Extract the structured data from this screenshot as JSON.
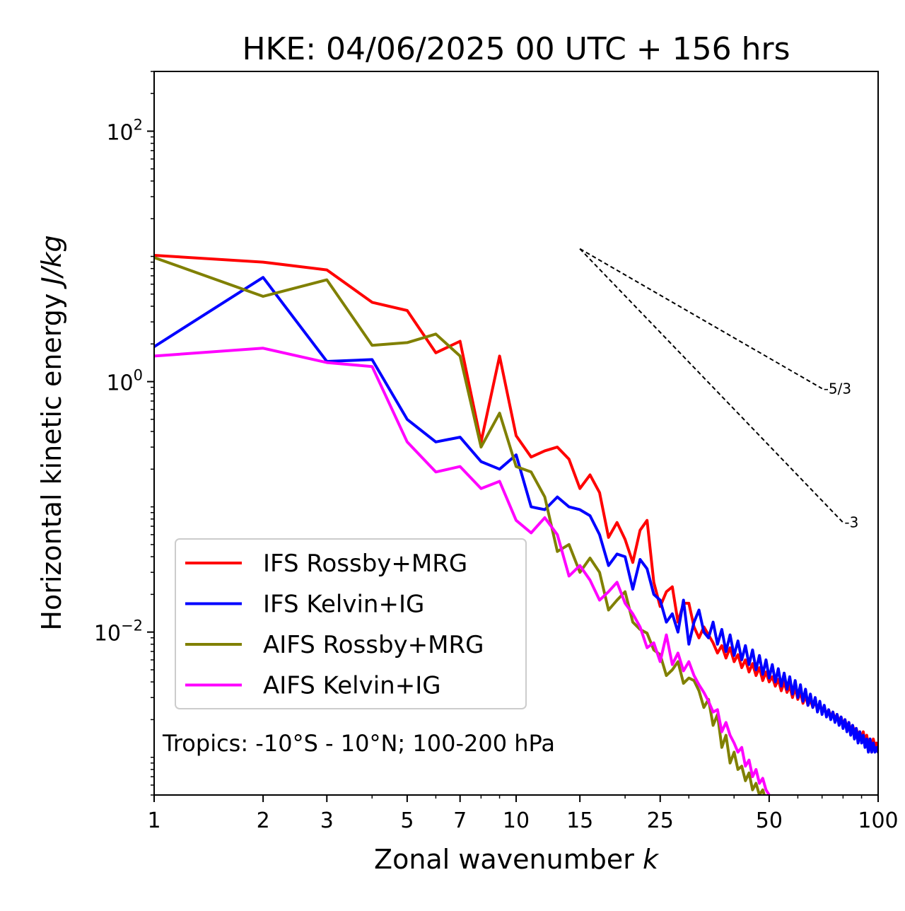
{
  "chart_data": {
    "type": "line",
    "title": "HKE: 04/06/2025 00 UTC + 156 hrs",
    "xlabel": "Zonal wavenumber",
    "xlabel_var": "k",
    "ylabel": "Horizontal kinetic energy",
    "ylabel_unit": "J/kg",
    "xscale": "log",
    "yscale": "log",
    "xlim": [
      1,
      100
    ],
    "ylim": [
      0.0005,
      300
    ],
    "xticks": [
      1,
      2,
      3,
      5,
      7,
      10,
      15,
      25,
      50,
      100
    ],
    "xtick_labels": [
      "1",
      "2",
      "3",
      "5",
      "7",
      "10",
      "15",
      "25",
      "50",
      "100"
    ],
    "yticks": [
      0.01,
      1,
      100
    ],
    "ytick_labels": [
      {
        "base": "10",
        "exp": "−2"
      },
      {
        "base": "10",
        "exp": "0"
      },
      {
        "base": "10",
        "exp": "2"
      }
    ],
    "grid": false,
    "legend_position": "lower-left",
    "annotation": "Tropics: -10°S - 10°N; 100-200 hPa",
    "reference_slopes": [
      {
        "label": "-5/3",
        "slope": -1.6667,
        "from": [
          15,
          11.5
        ],
        "to": [
          70,
          0.88
        ]
      },
      {
        "label": "-3",
        "slope": -3,
        "from": [
          15,
          11.5
        ],
        "to": [
          80,
          0.075
        ]
      }
    ],
    "series": [
      {
        "name": "IFS Rossby+MRG",
        "color": "#ff0000",
        "x": [
          1,
          2,
          3,
          4,
          5,
          6,
          7,
          8,
          9,
          10,
          11,
          12,
          13,
          14,
          15,
          16,
          17,
          18,
          19,
          20,
          21,
          22,
          23,
          24,
          25,
          26,
          27,
          28,
          29,
          30,
          31,
          32,
          33,
          34,
          35,
          36,
          37,
          38,
          39,
          40,
          41,
          42,
          43,
          44,
          45,
          46,
          47,
          48,
          49,
          50,
          51,
          52,
          53,
          54,
          55,
          56,
          57,
          58,
          59,
          60,
          61,
          62,
          63,
          64,
          65,
          66,
          67,
          68,
          69,
          70,
          71,
          72,
          73,
          74,
          75,
          76,
          77,
          78,
          79,
          80,
          81,
          82,
          83,
          84,
          85,
          86,
          87,
          88,
          89,
          90,
          91,
          92,
          93,
          94,
          95,
          96,
          97,
          98,
          99,
          100
        ],
        "y": [
          10.2,
          9.0,
          7.8,
          4.3,
          3.7,
          1.7,
          2.1,
          0.33,
          1.6,
          0.37,
          0.25,
          0.28,
          0.3,
          0.24,
          0.14,
          0.18,
          0.13,
          0.057,
          0.075,
          0.055,
          0.036,
          0.065,
          0.078,
          0.025,
          0.016,
          0.021,
          0.023,
          0.012,
          0.017,
          0.017,
          0.011,
          0.009,
          0.011,
          0.0095,
          0.0082,
          0.0068,
          0.0078,
          0.0062,
          0.0075,
          0.0058,
          0.0066,
          0.0052,
          0.006,
          0.0048,
          0.0056,
          0.0045,
          0.0052,
          0.0041,
          0.0048,
          0.004,
          0.0044,
          0.0037,
          0.0042,
          0.0034,
          0.004,
          0.0033,
          0.0037,
          0.003,
          0.0036,
          0.0029,
          0.0033,
          0.0027,
          0.0031,
          0.0026,
          0.0029,
          0.0025,
          0.0028,
          0.0024,
          0.0027,
          0.0023,
          0.0025,
          0.0022,
          0.0024,
          0.0021,
          0.0023,
          0.002,
          0.0022,
          0.0019,
          0.0021,
          0.0018,
          0.002,
          0.0017,
          0.0019,
          0.0016,
          0.0018,
          0.0016,
          0.0017,
          0.0015,
          0.0016,
          0.0014,
          0.0016,
          0.0013,
          0.0015,
          0.0012,
          0.0014,
          0.0011,
          0.0014,
          0.0012,
          0.0013,
          0.0011
        ]
      },
      {
        "name": "IFS Kelvin+IG",
        "color": "#0000ff",
        "x": [
          1,
          2,
          3,
          4,
          5,
          6,
          7,
          8,
          9,
          10,
          11,
          12,
          13,
          14,
          15,
          16,
          17,
          18,
          19,
          20,
          21,
          22,
          23,
          24,
          25,
          26,
          27,
          28,
          29,
          30,
          31,
          32,
          33,
          34,
          35,
          36,
          37,
          38,
          39,
          40,
          41,
          42,
          43,
          44,
          45,
          46,
          47,
          48,
          49,
          50,
          51,
          52,
          53,
          54,
          55,
          56,
          57,
          58,
          59,
          60,
          61,
          62,
          63,
          64,
          65,
          66,
          67,
          68,
          69,
          70,
          71,
          72,
          73,
          74,
          75,
          76,
          77,
          78,
          79,
          80,
          81,
          82,
          83,
          84,
          85,
          86,
          87,
          88,
          89,
          90,
          91,
          92,
          93,
          94,
          95,
          96,
          97,
          98,
          99,
          100
        ],
        "y": [
          1.9,
          6.8,
          1.45,
          1.5,
          0.5,
          0.33,
          0.36,
          0.23,
          0.2,
          0.26,
          0.1,
          0.095,
          0.12,
          0.1,
          0.095,
          0.085,
          0.06,
          0.034,
          0.042,
          0.04,
          0.022,
          0.038,
          0.032,
          0.02,
          0.018,
          0.012,
          0.014,
          0.01,
          0.018,
          0.008,
          0.012,
          0.015,
          0.01,
          0.009,
          0.012,
          0.008,
          0.0105,
          0.007,
          0.0095,
          0.0065,
          0.0085,
          0.006,
          0.0078,
          0.0055,
          0.0072,
          0.005,
          0.0065,
          0.0046,
          0.006,
          0.0043,
          0.0055,
          0.004,
          0.0051,
          0.0037,
          0.0047,
          0.0035,
          0.0044,
          0.0032,
          0.0041,
          0.003,
          0.0038,
          0.0028,
          0.0035,
          0.0026,
          0.0032,
          0.0025,
          0.003,
          0.0023,
          0.0028,
          0.0022,
          0.0026,
          0.0021,
          0.0024,
          0.002,
          0.0023,
          0.0019,
          0.0022,
          0.0018,
          0.0021,
          0.0017,
          0.002,
          0.0016,
          0.0019,
          0.0015,
          0.0018,
          0.0014,
          0.0017,
          0.0013,
          0.0016,
          0.0013,
          0.0015,
          0.0012,
          0.0014,
          0.0011,
          0.0014,
          0.0011,
          0.0013,
          0.0011,
          0.0012,
          0.0011
        ]
      },
      {
        "name": "AIFS Rossby+MRG",
        "color": "#808000",
        "x": [
          1,
          2,
          3,
          4,
          5,
          6,
          7,
          8,
          9,
          10,
          11,
          12,
          13,
          14,
          15,
          16,
          17,
          18,
          19,
          20,
          21,
          22,
          23,
          24,
          25,
          26,
          27,
          28,
          29,
          30,
          31,
          32,
          33,
          34,
          35,
          36,
          37,
          38,
          39,
          40,
          41,
          42,
          43,
          44,
          45,
          46,
          47,
          48,
          49,
          50
        ],
        "y": [
          9.8,
          4.8,
          6.5,
          1.95,
          2.05,
          2.4,
          1.6,
          0.3,
          0.56,
          0.21,
          0.19,
          0.12,
          0.044,
          0.05,
          0.03,
          0.039,
          0.03,
          0.015,
          0.018,
          0.021,
          0.012,
          0.0105,
          0.0098,
          0.0072,
          0.0066,
          0.0045,
          0.005,
          0.0058,
          0.0039,
          0.0043,
          0.0041,
          0.0034,
          0.0025,
          0.0029,
          0.0018,
          0.0022,
          0.0012,
          0.0015,
          0.0009,
          0.0011,
          0.0008,
          0.00085,
          0.00065,
          0.00075,
          0.00055,
          0.00062,
          0.0005,
          0.00055,
          0.00045,
          0.00048
        ]
      },
      {
        "name": "AIFS Kelvin+IG",
        "color": "#ff00ff",
        "x": [
          1,
          2,
          3,
          4,
          5,
          6,
          7,
          8,
          9,
          10,
          11,
          12,
          13,
          14,
          15,
          16,
          17,
          18,
          19,
          20,
          21,
          22,
          23,
          24,
          25,
          26,
          27,
          28,
          29,
          30,
          31,
          32,
          33,
          34,
          35,
          36,
          37,
          38,
          39,
          40,
          41,
          42,
          43,
          44,
          45,
          46,
          47,
          48,
          49,
          50
        ],
        "y": [
          1.6,
          1.85,
          1.42,
          1.32,
          0.33,
          0.19,
          0.21,
          0.14,
          0.16,
          0.078,
          0.062,
          0.082,
          0.06,
          0.028,
          0.034,
          0.026,
          0.018,
          0.021,
          0.025,
          0.017,
          0.014,
          0.011,
          0.0075,
          0.0082,
          0.0058,
          0.0095,
          0.0055,
          0.0068,
          0.0049,
          0.0058,
          0.0045,
          0.0038,
          0.0033,
          0.0028,
          0.0023,
          0.0024,
          0.0016,
          0.0019,
          0.0015,
          0.0013,
          0.0011,
          0.0012,
          0.00085,
          0.00095,
          0.0007,
          0.0008,
          0.00062,
          0.00068,
          0.00055,
          0.0005
        ]
      }
    ]
  }
}
